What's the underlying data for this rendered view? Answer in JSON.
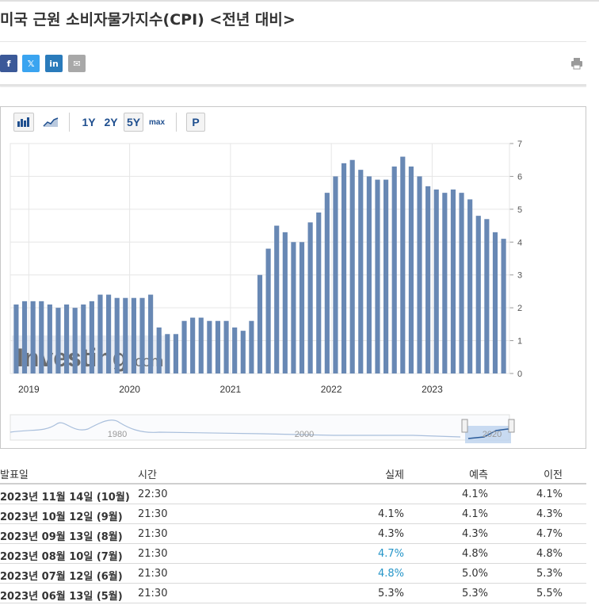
{
  "page": {
    "title": "미국 근원 소비자물가지수(CPI) <전년 대비>",
    "share": {
      "facebook": "f",
      "twitter": "𝕏",
      "linkedin": "in",
      "email": "✉"
    }
  },
  "toolbar": {
    "ranges": [
      "1Y",
      "2Y",
      "5Y",
      "max"
    ],
    "active_range": "5Y",
    "p_label": "P"
  },
  "chart_data": {
    "type": "bar",
    "title": "",
    "xlabel": "",
    "ylabel": "",
    "ylim": [
      0,
      7
    ],
    "yticks": [
      0,
      1,
      2,
      3,
      4,
      5,
      6,
      7
    ],
    "grid": true,
    "color": "#6888b4",
    "x_year_labels": [
      "2019",
      "2020",
      "2021",
      "2022",
      "2023"
    ],
    "categories": [
      "2018-11",
      "2018-12",
      "2019-01",
      "2019-02",
      "2019-03",
      "2019-04",
      "2019-05",
      "2019-06",
      "2019-07",
      "2019-08",
      "2019-09",
      "2019-10",
      "2019-11",
      "2019-12",
      "2020-01",
      "2020-02",
      "2020-03",
      "2020-04",
      "2020-05",
      "2020-06",
      "2020-07",
      "2020-08",
      "2020-09",
      "2020-10",
      "2020-11",
      "2020-12",
      "2021-01",
      "2021-02",
      "2021-03",
      "2021-04",
      "2021-05",
      "2021-06",
      "2021-07",
      "2021-08",
      "2021-09",
      "2021-10",
      "2021-11",
      "2021-12",
      "2022-01",
      "2022-02",
      "2022-03",
      "2022-04",
      "2022-05",
      "2022-06",
      "2022-07",
      "2022-08",
      "2022-09",
      "2022-10",
      "2022-11",
      "2022-12",
      "2023-01",
      "2023-02",
      "2023-03",
      "2023-04",
      "2023-05",
      "2023-06",
      "2023-07",
      "2023-08",
      "2023-09"
    ],
    "values": [
      2.1,
      2.2,
      2.2,
      2.2,
      2.1,
      2.0,
      2.1,
      2.0,
      2.1,
      2.2,
      2.4,
      2.4,
      2.3,
      2.3,
      2.3,
      2.3,
      2.4,
      1.4,
      1.2,
      1.2,
      1.6,
      1.7,
      1.7,
      1.6,
      1.6,
      1.6,
      1.4,
      1.3,
      1.6,
      3.0,
      3.8,
      4.5,
      4.3,
      4.0,
      4.0,
      4.6,
      4.9,
      5.5,
      6.0,
      6.4,
      6.5,
      6.2,
      6.0,
      5.9,
      5.9,
      6.3,
      6.6,
      6.3,
      6.0,
      5.7,
      5.6,
      5.5,
      5.6,
      5.5,
      5.3,
      4.8,
      4.7,
      4.3,
      4.1
    ],
    "watermark": {
      "main": "Investing",
      "suffix": ".com"
    },
    "navigator": {
      "labels": [
        "1980",
        "2000",
        "2020"
      ]
    }
  },
  "table": {
    "headers": {
      "date": "발표일",
      "time": "시간",
      "actual": "실제",
      "forecast": "예측",
      "previous": "이전"
    },
    "rows": [
      {
        "date": "2023년 11월 14일 (10월)",
        "time": "22:30",
        "actual": "",
        "forecast": "4.1%",
        "previous": "4.1%",
        "actual_color": ""
      },
      {
        "date": "2023년 10월 12일 (9월)",
        "time": "21:30",
        "actual": "4.1%",
        "forecast": "4.1%",
        "previous": "4.3%",
        "actual_color": ""
      },
      {
        "date": "2023년 09월 13일 (8월)",
        "time": "21:30",
        "actual": "4.3%",
        "forecast": "4.3%",
        "previous": "4.7%",
        "actual_color": ""
      },
      {
        "date": "2023년 08월 10일 (7월)",
        "time": "21:30",
        "actual": "4.7%",
        "forecast": "4.8%",
        "previous": "4.8%",
        "actual_color": "blue"
      },
      {
        "date": "2023년 07월 12일 (6월)",
        "time": "21:30",
        "actual": "4.8%",
        "forecast": "5.0%",
        "previous": "5.3%",
        "actual_color": "blue"
      },
      {
        "date": "2023년 06월 13일 (5월)",
        "time": "21:30",
        "actual": "5.3%",
        "forecast": "5.3%",
        "previous": "5.5%",
        "actual_color": ""
      }
    ]
  }
}
